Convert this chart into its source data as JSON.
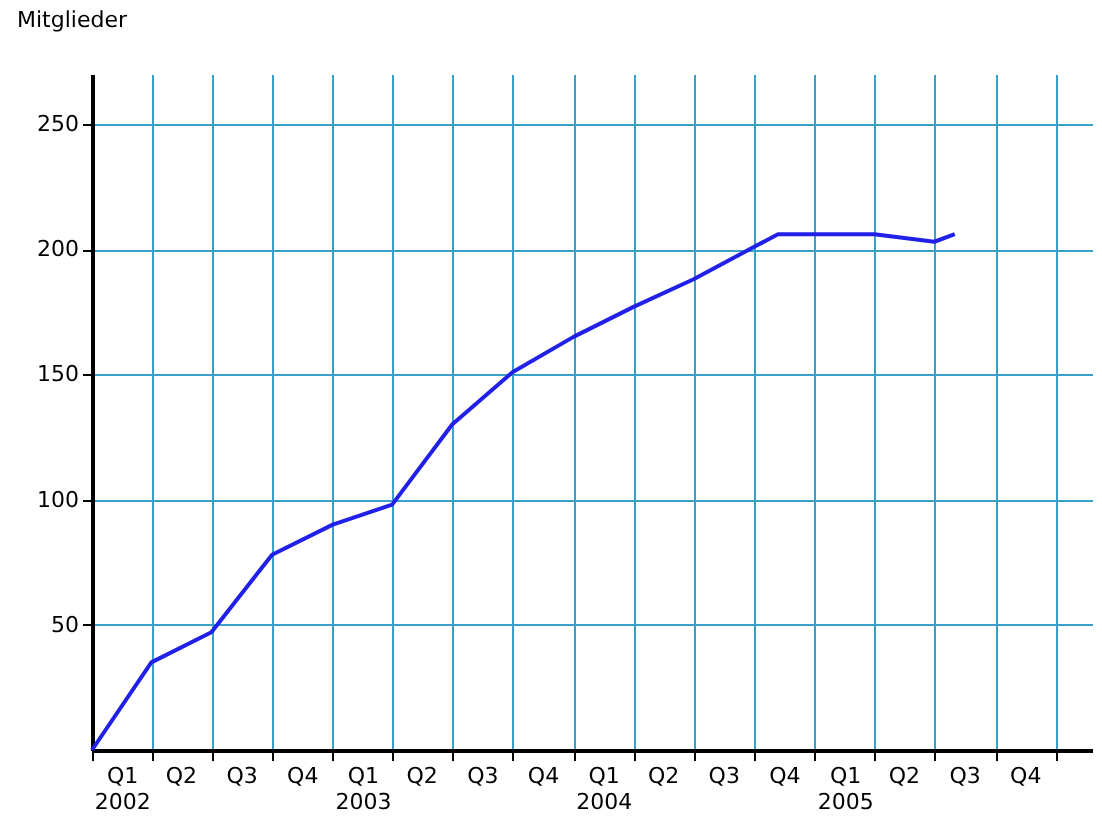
{
  "chart_data": {
    "type": "line",
    "ylabel": "Mitglieder",
    "series": [
      {
        "color": "#2020e8",
        "x": [
          "2002-01-01",
          "2002-04-01",
          "2002-07-01",
          "2002-10-01",
          "2003-01-01",
          "2003-04-01",
          "2003-07-01",
          "2003-10-01",
          "2004-01-01",
          "2004-04-01",
          "2004-07-01",
          "2004-10-01",
          "2004-11-06",
          "2005-04-01",
          "2005-07-01",
          "2005-08-01"
        ],
        "values": [
          0,
          35,
          47,
          78,
          90,
          98,
          130,
          151,
          165,
          177,
          188,
          201,
          206,
          206,
          203,
          206
        ]
      }
    ],
    "xlim": [
      "2002-01-01",
      "2006-02-25"
    ],
    "xticks": [
      {
        "value": "2002-01-01",
        "label": null
      },
      {
        "value": "2002-02-15",
        "label": "Q1\n2002"
      },
      {
        "value": "2002-04-01",
        "label": null
      },
      {
        "value": "2002-05-15",
        "label": "Q2"
      },
      {
        "value": "2002-07-01",
        "label": null
      },
      {
        "value": "2002-08-15",
        "label": "Q3"
      },
      {
        "value": "2002-10-01",
        "label": null
      },
      {
        "value": "2002-11-15",
        "label": "Q4"
      },
      {
        "value": "2003-01-01",
        "label": null
      },
      {
        "value": "2003-02-15",
        "label": "Q1\n2003"
      },
      {
        "value": "2003-04-01",
        "label": null
      },
      {
        "value": "2003-05-15",
        "label": "Q2"
      },
      {
        "value": "2003-07-01",
        "label": null
      },
      {
        "value": "2003-08-15",
        "label": "Q3"
      },
      {
        "value": "2003-10-01",
        "label": null
      },
      {
        "value": "2003-11-15",
        "label": "Q4"
      },
      {
        "value": "2004-01-01",
        "label": null
      },
      {
        "value": "2004-02-15",
        "label": "Q1\n2004"
      },
      {
        "value": "2004-04-01",
        "label": null
      },
      {
        "value": "2004-05-15",
        "label": "Q2"
      },
      {
        "value": "2004-07-01",
        "label": null
      },
      {
        "value": "2004-08-15",
        "label": "Q3"
      },
      {
        "value": "2004-10-01",
        "label": null
      },
      {
        "value": "2004-11-15",
        "label": "Q4"
      },
      {
        "value": "2005-01-01",
        "label": null
      },
      {
        "value": "2005-02-15",
        "label": "Q1\n2005"
      },
      {
        "value": "2005-04-01",
        "label": null
      },
      {
        "value": "2005-05-15",
        "label": "Q2"
      },
      {
        "value": "2005-07-01",
        "label": null
      },
      {
        "value": "2005-08-15",
        "label": "Q3"
      },
      {
        "value": "2005-10-01",
        "label": null
      },
      {
        "value": "2005-11-15",
        "label": "Q4"
      },
      {
        "value": "2006-01-01",
        "label": null
      }
    ],
    "ylim": [
      0,
      270
    ],
    "yticks": [
      50,
      100,
      150,
      200,
      250
    ],
    "grid": true,
    "marker": "none",
    "line_style": "solid"
  }
}
